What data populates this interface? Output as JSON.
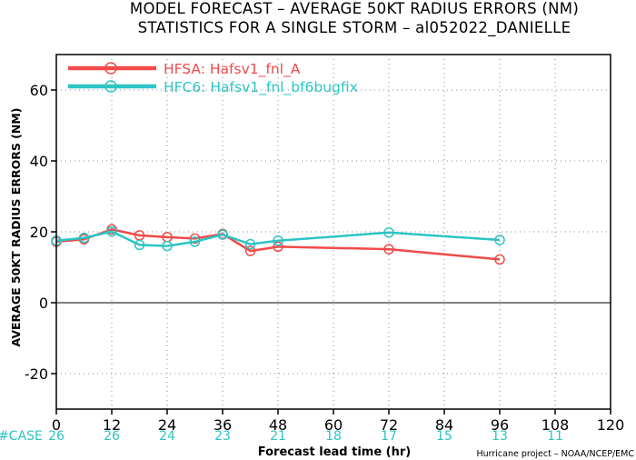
{
  "chart_data": {
    "type": "line",
    "title": [
      "MODEL FORECAST – AVERAGE 50KT RADIUS ERRORS (NM)",
      "STATISTICS FOR A SINGLE STORM – al052022_DANIELLE"
    ],
    "xlabel": "Forecast lead time (hr)",
    "ylabel": "AVERAGE 50KT RADIUS ERRORS (NM)",
    "xlim": [
      0,
      120
    ],
    "ylim": [
      -30,
      70
    ],
    "xticks": [
      0,
      12,
      24,
      36,
      48,
      60,
      72,
      84,
      96,
      108,
      120
    ],
    "yticks": [
      -20,
      0,
      20,
      40,
      60
    ],
    "grid": "dotted",
    "legend_position": "top-left",
    "series": [
      {
        "name": "HFSA: Hafsv1_fnl_A",
        "color": "#f04a4a",
        "x": [
          0,
          6,
          12,
          18,
          24,
          30,
          36,
          42,
          48,
          72,
          96
        ],
        "values": [
          17.2,
          17.9,
          20.7,
          19.0,
          18.5,
          18.1,
          19.4,
          14.6,
          15.8,
          15.1,
          12.2
        ]
      },
      {
        "name": "HFC6: Hafsv1_fnl_bf6bugfix",
        "color": "#2cc4c4",
        "x": [
          0,
          6,
          12,
          18,
          24,
          30,
          36,
          42,
          48,
          72,
          96
        ],
        "values": [
          17.5,
          18.3,
          20.1,
          16.3,
          16.0,
          17.2,
          19.2,
          16.5,
          17.5,
          19.8,
          17.7
        ]
      }
    ],
    "case_label": "#CASE",
    "case_counts": [
      {
        "x": 0,
        "count": "26"
      },
      {
        "x": 12,
        "count": "26"
      },
      {
        "x": 24,
        "count": "24"
      },
      {
        "x": 36,
        "count": "23"
      },
      {
        "x": 48,
        "count": "21"
      },
      {
        "x": 60,
        "count": "18"
      },
      {
        "x": 72,
        "count": "17"
      },
      {
        "x": 84,
        "count": "15"
      },
      {
        "x": 96,
        "count": "13"
      },
      {
        "x": 108,
        "count": "11"
      }
    ],
    "credit": "Hurricane project – NOAA/NCEP/EMC",
    "colors": {
      "zero_line": "#000000",
      "grid": "#888888",
      "case_text": "#2cc4c4"
    }
  }
}
